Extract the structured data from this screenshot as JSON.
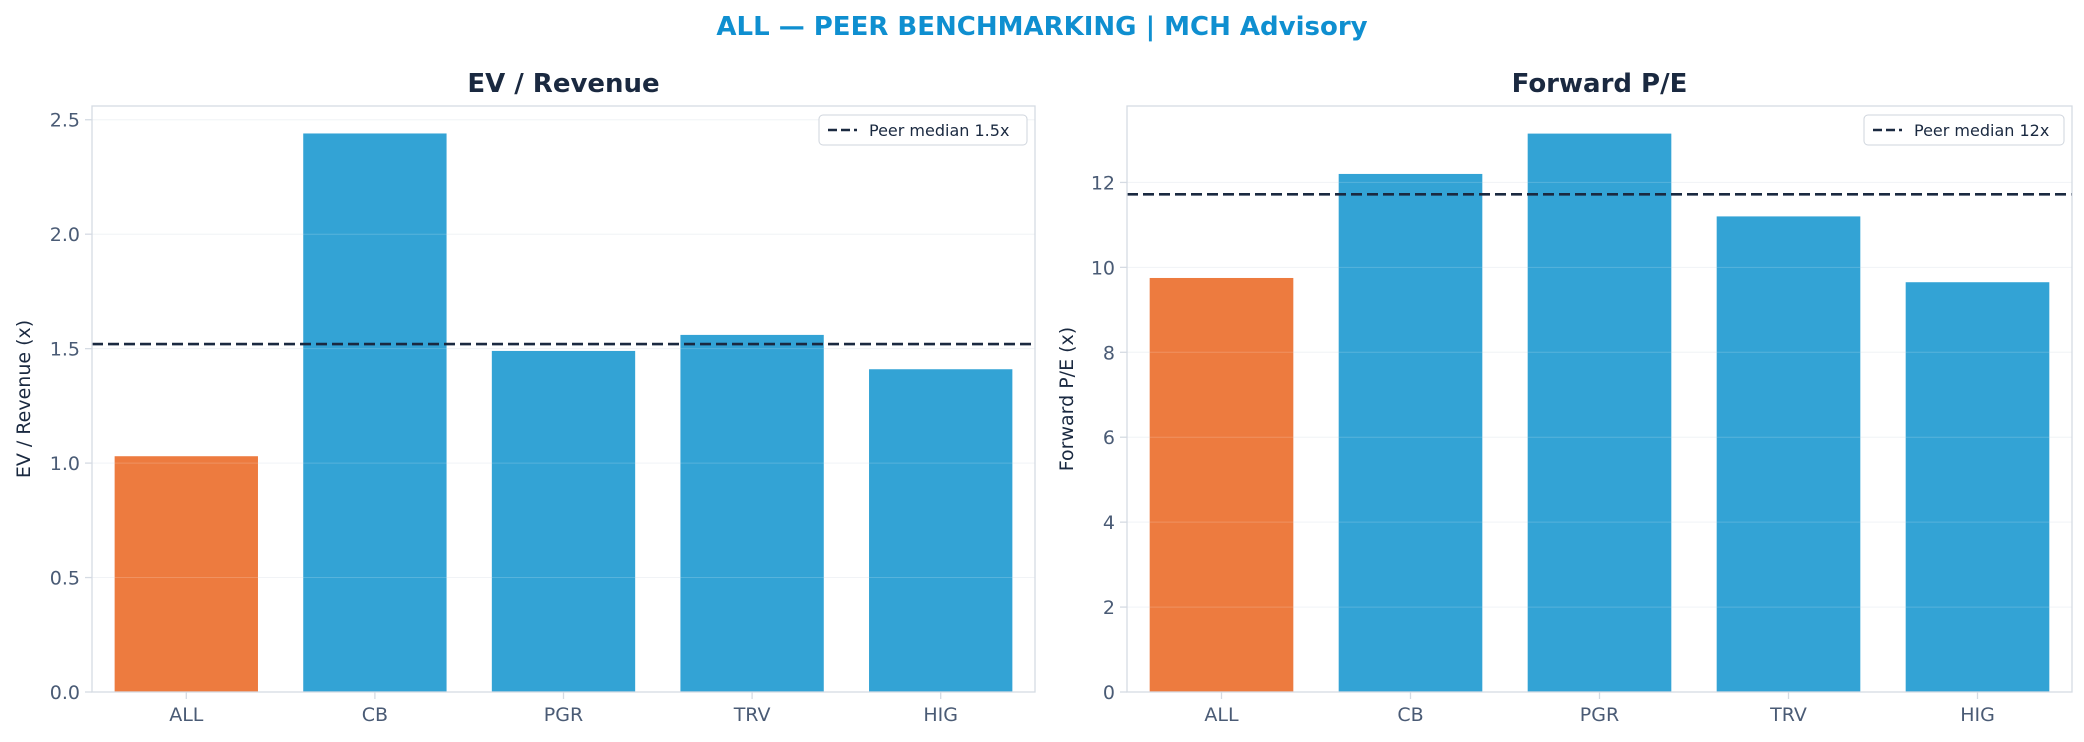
{
  "title": "ALL — PEER BENCHMARKING | MCH Advisory",
  "colors": {
    "title": "#0f8fd0",
    "text": "#1a2940",
    "tick_text": "#4a5b75",
    "highlight_bar": "#ed7b3f",
    "peer_bar": "#33a3d5",
    "median_line": "#1a2940",
    "axis_spine": "#d5dbe3",
    "grid": "#eef1f5"
  },
  "chart_data": [
    {
      "type": "bar",
      "title": "EV / Revenue",
      "xlabel": "",
      "ylabel": "EV / Revenue (x)",
      "categories": [
        "ALL",
        "CB",
        "PGR",
        "TRV",
        "HIG"
      ],
      "values": [
        1.03,
        2.44,
        1.49,
        1.56,
        1.41
      ],
      "highlight": "ALL",
      "ylim": [
        0,
        2.56
      ],
      "yticks": [
        0.0,
        0.5,
        1.0,
        1.5,
        2.0,
        2.5
      ],
      "ytick_labels": [
        "0.0",
        "0.5",
        "1.0",
        "1.5",
        "2.0",
        "2.5"
      ],
      "reference_line": {
        "value": 1.52,
        "label": "Peer median 1.5x"
      },
      "legend": "top-right",
      "grid": true
    },
    {
      "type": "bar",
      "title": "Forward P/E",
      "xlabel": "",
      "ylabel": "Forward P/E (x)",
      "categories": [
        "ALL",
        "CB",
        "PGR",
        "TRV",
        "HIG"
      ],
      "values": [
        9.75,
        12.2,
        13.15,
        11.2,
        9.65
      ],
      "highlight": "ALL",
      "ylim": [
        0,
        13.8
      ],
      "yticks": [
        0,
        2,
        4,
        6,
        8,
        10,
        12
      ],
      "ytick_labels": [
        "0",
        "2",
        "4",
        "6",
        "8",
        "10",
        "12"
      ],
      "reference_line": {
        "value": 11.72,
        "label": "Peer median 12x"
      },
      "legend": "top-right",
      "grid": true
    }
  ]
}
